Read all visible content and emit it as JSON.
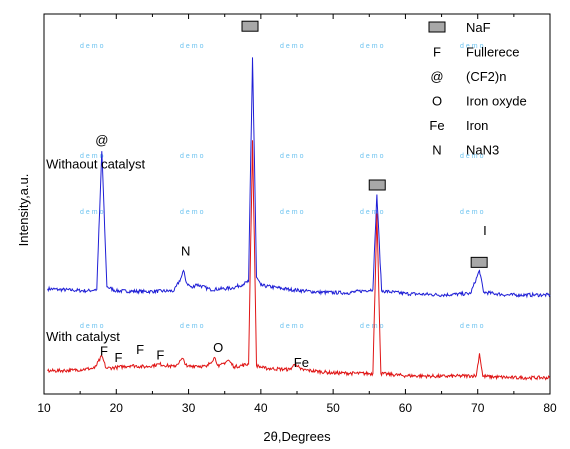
{
  "chart_data": {
    "type": "line",
    "xlabel": "2θ,Degrees",
    "ylabel": "Intensity,a.u.",
    "xlim": [
      10,
      80
    ],
    "x_ticks": [
      10,
      20,
      30,
      40,
      50,
      60,
      70,
      80
    ],
    "y_ticks_shown": false,
    "grid": false,
    "series": [
      {
        "name": "Withaout catalyst",
        "color": "#1f1fd6",
        "baseline": 7.6,
        "noise": 0.13,
        "points": [
          [
            10.5,
            7.75
          ],
          [
            12,
            7.7
          ],
          [
            14,
            7.65
          ],
          [
            16,
            7.6
          ],
          [
            17.3,
            7.7
          ],
          [
            18,
            17.9
          ],
          [
            18.7,
            7.9
          ],
          [
            20,
            7.6
          ],
          [
            24,
            7.55
          ],
          [
            28,
            7.6
          ],
          [
            29.0,
            8.6
          ],
          [
            29.3,
            9.1
          ],
          [
            29.7,
            8.2
          ],
          [
            30.5,
            7.8
          ],
          [
            31,
            8.1
          ],
          [
            33,
            7.7
          ],
          [
            36,
            7.8
          ],
          [
            37.6,
            8.1
          ],
          [
            38.3,
            8.3
          ],
          [
            38.85,
            24.8
          ],
          [
            39.4,
            8.6
          ],
          [
            40,
            8.0
          ],
          [
            44,
            7.7
          ],
          [
            48,
            7.5
          ],
          [
            52,
            7.45
          ],
          [
            55.5,
            7.7
          ],
          [
            56.05,
            14.7
          ],
          [
            56.7,
            7.6
          ],
          [
            60,
            7.4
          ],
          [
            65,
            7.3
          ],
          [
            69,
            7.4
          ],
          [
            70.25,
            9.1
          ],
          [
            70.8,
            7.5
          ],
          [
            74,
            7.3
          ],
          [
            78,
            7.3
          ],
          [
            80,
            7.3
          ]
        ]
      },
      {
        "name": "With catalyst",
        "color": "#e01515",
        "baseline": 1.6,
        "noise": 0.13,
        "points": [
          [
            10.5,
            1.7
          ],
          [
            14,
            1.75
          ],
          [
            17,
            1.9
          ],
          [
            18.0,
            2.8
          ],
          [
            18.6,
            1.9
          ],
          [
            20,
            1.95
          ],
          [
            22,
            2.1
          ],
          [
            24,
            2.0
          ],
          [
            26,
            2.2
          ],
          [
            28,
            2.0
          ],
          [
            29.2,
            2.6
          ],
          [
            29.8,
            2.0
          ],
          [
            31,
            2.1
          ],
          [
            32.5,
            2.0
          ],
          [
            33.6,
            2.7
          ],
          [
            34.2,
            2.0
          ],
          [
            35.5,
            2.5
          ],
          [
            36.3,
            2.0
          ],
          [
            38.3,
            2.2
          ],
          [
            38.85,
            18.7
          ],
          [
            39.4,
            2.1
          ],
          [
            40.5,
            1.9
          ],
          [
            44,
            1.8
          ],
          [
            44.8,
            2.25
          ],
          [
            45.5,
            1.8
          ],
          [
            50,
            1.55
          ],
          [
            55.5,
            1.5
          ],
          [
            56.05,
            13.3
          ],
          [
            56.6,
            1.5
          ],
          [
            60,
            1.35
          ],
          [
            65,
            1.3
          ],
          [
            69.8,
            1.35
          ],
          [
            70.25,
            3.0
          ],
          [
            70.7,
            1.3
          ],
          [
            75,
            1.2
          ],
          [
            80,
            1.2
          ]
        ]
      }
    ],
    "series_labels": [
      {
        "text": "Withaout catalyst",
        "x": 10.3,
        "y": 16.6
      },
      {
        "text": "With catalyst",
        "x": 10.3,
        "y": 3.9
      }
    ],
    "annotations": [
      {
        "text": "@",
        "x": 18.0,
        "y": 18.4
      },
      {
        "text": "N",
        "x": 29.6,
        "y": 10.2
      },
      {
        "text": "F",
        "x": 18.3,
        "y": 2.85
      },
      {
        "text": "F",
        "x": 20.3,
        "y": 2.35
      },
      {
        "text": "F",
        "x": 23.3,
        "y": 2.95
      },
      {
        "text": "F",
        "x": 26.1,
        "y": 2.55
      },
      {
        "text": "O",
        "x": 34.1,
        "y": 3.1
      },
      {
        "text": "Fe",
        "x": 45.6,
        "y": 2.0
      },
      {
        "text": "I",
        "x": 71.0,
        "y": 11.7
      }
    ],
    "markers": [
      {
        "symbol": "box",
        "x": 38.5,
        "y": 27.1
      },
      {
        "symbol": "box",
        "x": 56.1,
        "y": 15.4
      },
      {
        "symbol": "box",
        "x": 70.2,
        "y": 9.7
      }
    ],
    "legend": {
      "placement": "top-right",
      "entries": [
        {
          "symbol": "box",
          "label": "NaF"
        },
        {
          "symbol": "F",
          "label": "Fullerece"
        },
        {
          "symbol": "@",
          "label": "(CF2)n"
        },
        {
          "symbol": "O",
          "label": "Iron oxyde"
        },
        {
          "symbol": "Fe",
          "label": "Iron"
        },
        {
          "symbol": "N",
          "label": "NaN3"
        }
      ]
    },
    "watermark": "demo"
  }
}
